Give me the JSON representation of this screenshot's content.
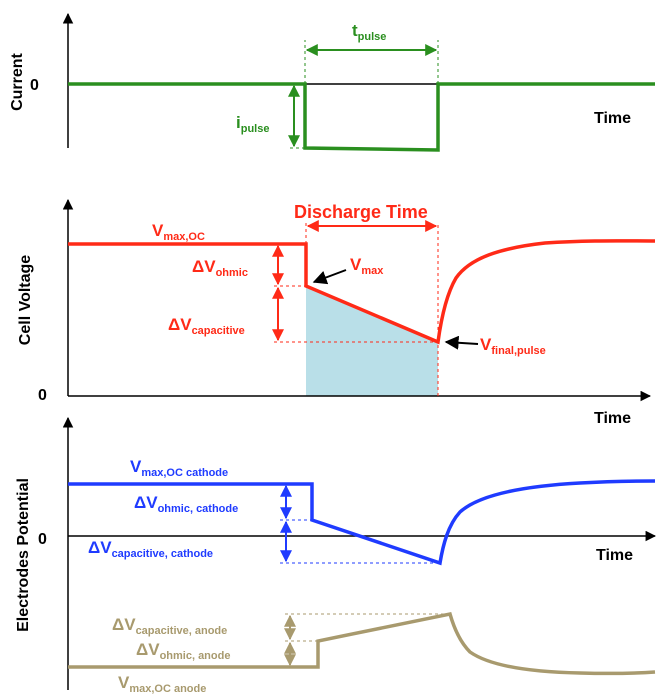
{
  "colors": {
    "current": "#2a8f1f",
    "voltage": "#ff2a17",
    "cathode": "#1f3bff",
    "anode": "#a89a6e",
    "shade": "#b9dfe8",
    "axis": "#000000"
  },
  "current_panel": {
    "ylabel": "Current",
    "zero": "0",
    "xlabel": "Time",
    "t_pulse": {
      "base": "t",
      "sub": "pulse"
    },
    "i_pulse": {
      "base": "i",
      "sub": "pulse"
    }
  },
  "voltage_panel": {
    "ylabel": "Cell Voltage",
    "zero": "0",
    "xlabel": "Time",
    "discharge_time": "Discharge Time",
    "v_max_oc": {
      "base": "V",
      "sub": "max,OC"
    },
    "dv_ohmic": {
      "base": "ΔV",
      "sub": "ohmic"
    },
    "v_max": {
      "base": "V",
      "sub": "max"
    },
    "dv_capacitive": {
      "base": "ΔV",
      "sub": "capacitive"
    },
    "v_final_pulse": {
      "base": "V",
      "sub": "final,pulse"
    }
  },
  "electrode_panel": {
    "ylabel": "Electrodes Potential",
    "zero": "0",
    "xlabel": "Time",
    "v_max_oc_cathode": {
      "base": "V",
      "sub": "max,OC cathode"
    },
    "dv_ohmic_cathode": {
      "base": "ΔV",
      "sub": "ohmic, cathode"
    },
    "dv_capacitive_cathode": {
      "base": "ΔV",
      "sub": "capacitive, cathode"
    },
    "dv_capacitive_anode": {
      "base": "ΔV",
      "sub": "capacitive, anode"
    },
    "dv_ohmic_anode": {
      "base": "ΔV",
      "sub": "ohmic, anode"
    },
    "v_max_oc_anode": {
      "base": "V",
      "sub": "max,OC anode"
    }
  }
}
